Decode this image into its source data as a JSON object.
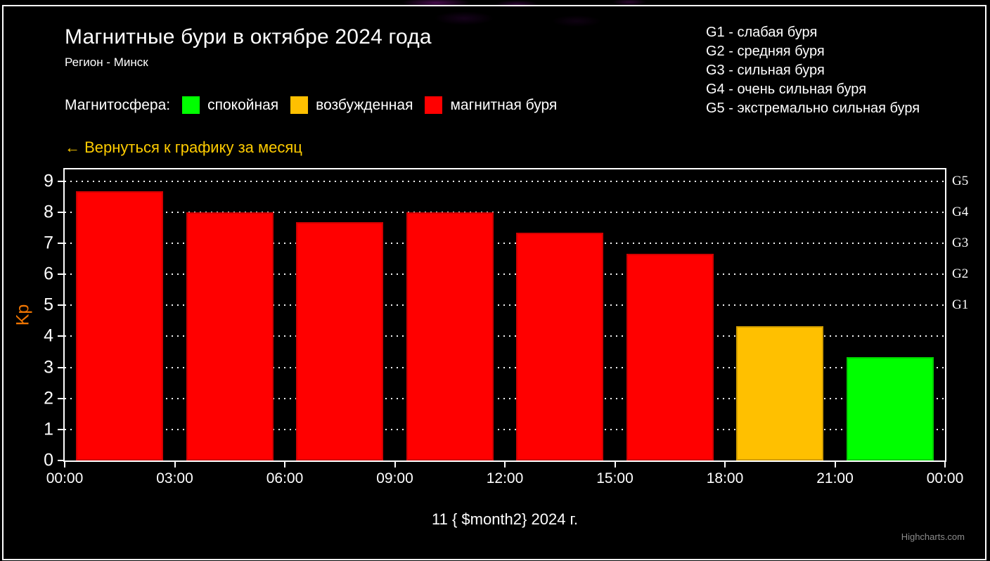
{
  "header": {
    "title": "Магнитные бури в октябре 2024 года",
    "subtitle": "Регион - Минск"
  },
  "storm_scale": {
    "items": [
      "G1 - слабая буря",
      "G2 - средняя буря",
      "G3 - сильная буря",
      "G4 - очень сильная буря",
      "G5 - экстремально сильная буря"
    ]
  },
  "legend": {
    "label": "Магнитосфера:",
    "items": [
      {
        "label": "спокойная",
        "color": "#00FF00"
      },
      {
        "label": "возбужденная",
        "color": "#FFC000"
      },
      {
        "label": "магнитная буря",
        "color": "#FF0000"
      }
    ]
  },
  "back_link": {
    "text": "← Вернуться к графику за месяц",
    "color": "#FFCC00"
  },
  "chart_data": {
    "type": "bar",
    "title": "Магнитные бури в октябре 2024 года",
    "subtitle": "Регион - Минск",
    "xlabel": "11 { $month2} 2024 г.",
    "ylabel": "Kp",
    "ylabel_color": "#ED7402",
    "ylim": [
      0,
      9.38
    ],
    "grid": "dotted horizontal",
    "legend_position": "top",
    "y_ticks": [
      0,
      1,
      2,
      3,
      4,
      5,
      6,
      7,
      8,
      9
    ],
    "x_tick_labels": [
      "00:00",
      "03:00",
      "06:00",
      "09:00",
      "12:00",
      "15:00",
      "18:00",
      "21:00",
      "00:00"
    ],
    "right_axis_labels": [
      {
        "label": "G1",
        "value": 5
      },
      {
        "label": "G2",
        "value": 6
      },
      {
        "label": "G3",
        "value": 7
      },
      {
        "label": "G4",
        "value": 8
      },
      {
        "label": "G5",
        "value": 9
      }
    ],
    "categories": [
      "00:00",
      "03:00",
      "06:00",
      "09:00",
      "12:00",
      "15:00",
      "18:00",
      "21:00"
    ],
    "values": [
      8.67,
      8,
      7.67,
      8,
      7.33,
      6.67,
      4.33,
      3.33
    ],
    "colors": [
      "#FF0000",
      "#FF0000",
      "#FF0000",
      "#FF0000",
      "#FF0000",
      "#FF0000",
      "#FFC000",
      "#00FF00"
    ]
  },
  "credits": {
    "text": "Highcharts.com"
  }
}
